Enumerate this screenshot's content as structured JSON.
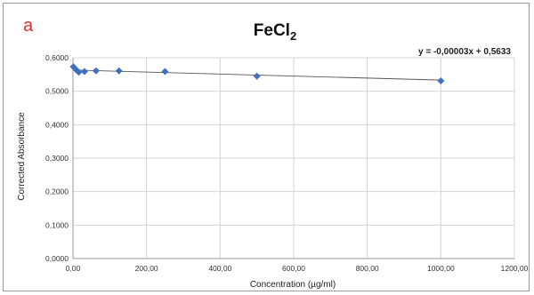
{
  "panel_label": "a",
  "chart_data": {
    "type": "scatter",
    "title": "FeCl",
    "title_subscript": "2",
    "xlabel": "Concentration (µg/ml)",
    "ylabel": "Corrected Absorbance",
    "xlim": [
      0,
      1200
    ],
    "ylim": [
      0,
      0.6
    ],
    "xticks": [
      0,
      200,
      400,
      600,
      800,
      1000,
      1200
    ],
    "yticks": [
      0,
      0.1,
      0.2,
      0.3,
      0.4,
      0.5,
      0.6
    ],
    "xtick_labels": [
      "0,00",
      "200,00",
      "400,00",
      "600,00",
      "800,00",
      "1000,00",
      "1200,00"
    ],
    "ytick_labels": [
      "0,0000",
      "0,1000",
      "0,2000",
      "0,3000",
      "0,4000",
      "0,5000",
      "0,6000"
    ],
    "grid": true,
    "marker_color": "#3f6fbf",
    "trendline_color": "#555555",
    "series": [
      {
        "x": [
          1,
          7.8,
          15.6,
          31.25,
          62.5,
          125,
          250,
          500,
          1000
        ],
        "y": [
          0.573,
          0.565,
          0.557,
          0.559,
          0.561,
          0.561,
          0.559,
          0.545,
          0.531
        ]
      }
    ],
    "trendline": {
      "equation": "y = -0,00003x + 0,5633",
      "slope": -3e-05,
      "intercept": 0.5633,
      "x_range": [
        0,
        1000
      ]
    }
  }
}
